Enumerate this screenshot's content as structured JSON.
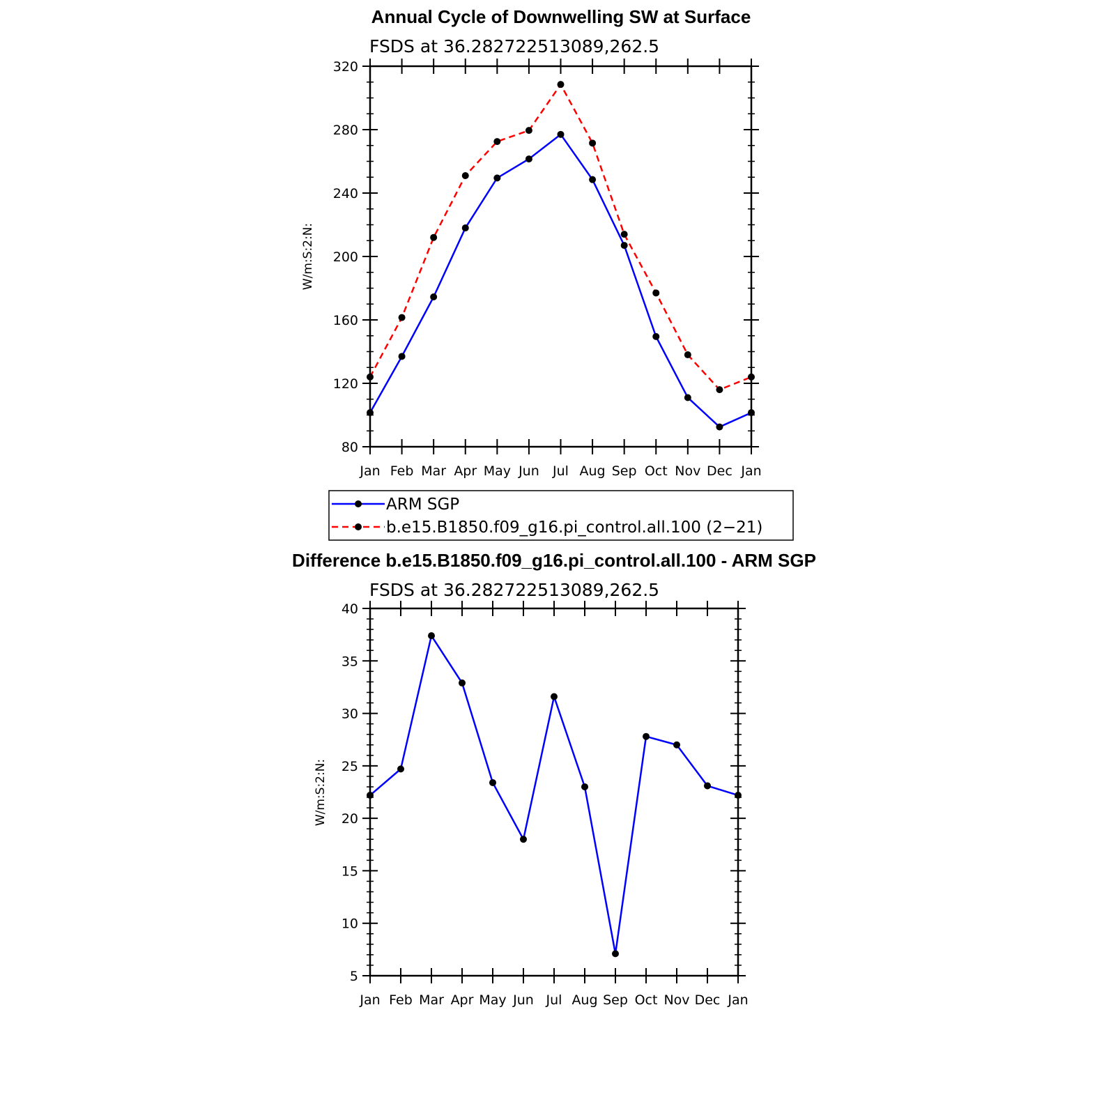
{
  "chart_data": [
    {
      "type": "line",
      "title": "Annual Cycle of Downwelling SW at Surface",
      "subtitle": "FSDS at 36.282722513089,262.5",
      "xlabel": "",
      "ylabel": "W/m:S:2:N:",
      "categories": [
        "Jan",
        "Feb",
        "Mar",
        "Apr",
        "May",
        "Jun",
        "Jul",
        "Aug",
        "Sep",
        "Oct",
        "Nov",
        "Dec",
        "Jan"
      ],
      "ylim": [
        80,
        320
      ],
      "yticks": [
        80,
        120,
        160,
        200,
        240,
        280,
        320
      ],
      "legend_position": "bottom",
      "series": [
        {
          "name": "ARM SGP",
          "color": "#0000ff",
          "dash": "solid",
          "values": [
            101.5,
            137,
            174.5,
            218,
            249.5,
            261.5,
            277,
            248.5,
            207,
            149.5,
            111,
            92.5,
            101.5
          ]
        },
        {
          "name": "b.e15.B1850.f09_g16.pi_control.all.100 (2−21)",
          "color": "#ff0000",
          "dash": "dashed",
          "values": [
            124,
            161.5,
            212,
            251,
            272.5,
            279.5,
            308.5,
            271.5,
            214,
            177,
            138,
            116,
            124
          ]
        }
      ]
    },
    {
      "type": "line",
      "title": "Difference b.e15.B1850.f09_g16.pi_control.all.100 - ARM SGP",
      "subtitle": "FSDS at 36.282722513089,262.5",
      "xlabel": "",
      "ylabel": "W/m:S:2:N:",
      "categories": [
        "Jan",
        "Feb",
        "Mar",
        "Apr",
        "May",
        "Jun",
        "Jul",
        "Aug",
        "Sep",
        "Oct",
        "Nov",
        "Dec",
        "Jan"
      ],
      "ylim": [
        5,
        40
      ],
      "yticks": [
        5,
        10,
        15,
        20,
        25,
        30,
        35,
        40
      ],
      "series": [
        {
          "color": "#0000ff",
          "dash": "solid",
          "values": [
            22.2,
            24.7,
            37.4,
            32.9,
            23.4,
            18,
            31.6,
            23,
            7.1,
            27.8,
            27,
            23.1,
            22.2
          ]
        }
      ]
    }
  ]
}
